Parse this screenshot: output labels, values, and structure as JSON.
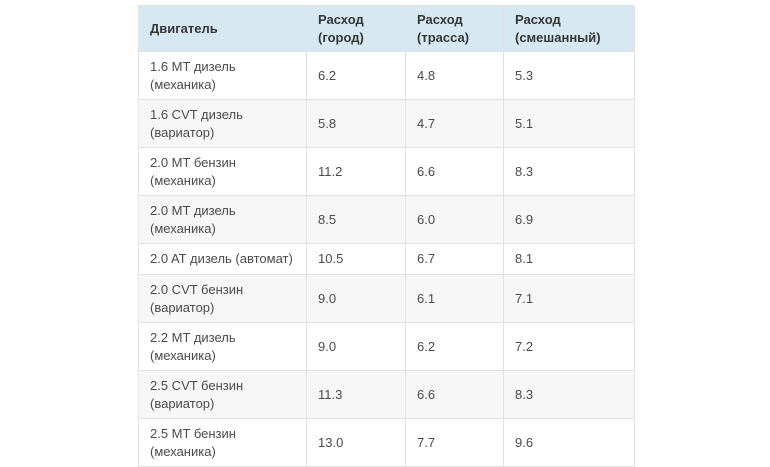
{
  "colors": {
    "header_bg": "#d6e9f3",
    "header_text": "#353535",
    "cell_text": "#4a4a4a",
    "border": "#e2e2e2",
    "row_alt_bg": "#f7f7f7",
    "page_bg": "#ffffff"
  },
  "table": {
    "columns": [
      {
        "key": "engine",
        "label": "Двигатель"
      },
      {
        "key": "city",
        "label": "Расход (город)"
      },
      {
        "key": "highway",
        "label": "Расход (трасса)"
      },
      {
        "key": "mixed",
        "label": "Расход (смешанный)"
      }
    ],
    "rows": [
      {
        "engine": "1.6 MT дизель (механика)",
        "city": "6.2",
        "highway": "4.8",
        "mixed": "5.3"
      },
      {
        "engine": "1.6 CVT дизель (вариатор)",
        "city": "5.8",
        "highway": "4.7",
        "mixed": "5.1"
      },
      {
        "engine": "2.0 MT бензин (механика)",
        "city": "11.2",
        "highway": "6.6",
        "mixed": "8.3"
      },
      {
        "engine": "2.0 MT дизель (механика)",
        "city": "8.5",
        "highway": "6.0",
        "mixed": "6.9"
      },
      {
        "engine": "2.0 AT дизель (автомат)",
        "city": "10.5",
        "highway": "6.7",
        "mixed": "8.1"
      },
      {
        "engine": "2.0 CVT бензин (вариатор)",
        "city": "9.0",
        "highway": "6.1",
        "mixed": "7.1"
      },
      {
        "engine": "2.2 MT дизель (механика)",
        "city": "9.0",
        "highway": "6.2",
        "mixed": "7.2"
      },
      {
        "engine": "2.5 CVT бензин (вариатор)",
        "city": "11.3",
        "highway": "6.6",
        "mixed": "8.3"
      },
      {
        "engine": "2.5 MT бензин (механика)",
        "city": "13.0",
        "highway": "7.7",
        "mixed": "9.6"
      }
    ]
  }
}
